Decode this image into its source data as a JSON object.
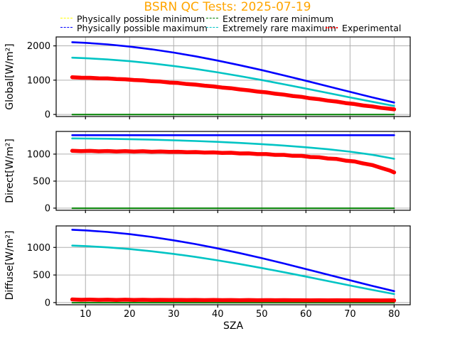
{
  "title": {
    "text": "BSRN QC Tests: 2025-07-19",
    "color": "#ffa500"
  },
  "legend": {
    "rows": [
      [
        {
          "label": "Physically possible minimum",
          "color": "#ffff00",
          "style": "dashed"
        },
        {
          "label": "Extremely rare minimum",
          "color": "#008000",
          "style": "dashed"
        }
      ],
      [
        {
          "label": "Physically possible maximum",
          "color": "#0000ff",
          "style": "dashed"
        },
        {
          "label": "Extremely rare maximum",
          "color": "#00c4c4",
          "style": "dashed"
        },
        {
          "label": "Experimental",
          "color": "#ff0000",
          "style": "dotted"
        }
      ]
    ]
  },
  "colors": {
    "grid": "#b0b0b0",
    "frame": "#000000"
  },
  "chart_data": [
    {
      "type": "line",
      "id": "global",
      "ylabel": "Global[W/m²]",
      "ylim": [
        -60,
        2260
      ],
      "yticks": [
        0,
        1000,
        2000
      ],
      "xlim": [
        3.35,
        83.65
      ],
      "xticks": [
        10,
        20,
        30,
        40,
        50,
        60,
        70,
        80
      ],
      "xlabel": "",
      "series": [
        {
          "name": "Physically possible minimum",
          "color": "#ffff00",
          "width": 1.5,
          "x": [
            7,
            80
          ],
          "y": [
            -4,
            -4
          ]
        },
        {
          "name": "Physically possible maximum",
          "color": "#0000ff",
          "width": 2.6,
          "x": [
            7,
            10,
            15,
            20,
            25,
            30,
            35,
            40,
            45,
            50,
            55,
            60,
            65,
            70,
            75,
            80
          ],
          "y": [
            2107,
            2088,
            2043,
            1979,
            1900,
            1804,
            1694,
            1571,
            1436,
            1292,
            1139,
            981,
            820,
            659,
            500,
            348
          ]
        },
        {
          "name": "Extremely rare minimum",
          "color": "#008000",
          "width": 2,
          "x": [
            7,
            80
          ],
          "y": [
            -2,
            -2
          ]
        },
        {
          "name": "Extremely rare maximum",
          "color": "#00c4c4",
          "width": 2.6,
          "x": [
            7,
            10,
            15,
            20,
            25,
            30,
            35,
            40,
            45,
            50,
            55,
            60,
            65,
            70,
            75,
            80
          ],
          "y": [
            1656,
            1641,
            1604,
            1553,
            1490,
            1413,
            1325,
            1227,
            1119,
            1003,
            881,
            755,
            626,
            497,
            370,
            248
          ]
        },
        {
          "name": "Experimental",
          "color": "#ff0000",
          "width": 5.5,
          "x": [
            7,
            9,
            11,
            13,
            15,
            17,
            19,
            21,
            23,
            25,
            27,
            29,
            31,
            33,
            35,
            37,
            39,
            41,
            43,
            45,
            47,
            49,
            51,
            53,
            55,
            57,
            59,
            61,
            63,
            65,
            67,
            69,
            71,
            73,
            75,
            77,
            79,
            80
          ],
          "y": [
            1086,
            1071,
            1069,
            1053,
            1051,
            1032,
            1025,
            1005,
            995,
            970,
            959,
            930,
            917,
            887,
            871,
            838,
            819,
            786,
            764,
            729,
            705,
            667,
            644,
            604,
            579,
            538,
            513,
            471,
            444,
            402,
            374,
            332,
            304,
            262,
            234,
            193,
            166,
            149
          ]
        }
      ]
    },
    {
      "type": "line",
      "id": "direct",
      "ylabel": "Direct[W/m²]",
      "ylim": [
        -40,
        1420
      ],
      "yticks": [
        0,
        500,
        1000
      ],
      "xlim": [
        3.35,
        83.65
      ],
      "xticks": [
        10,
        20,
        30,
        40,
        50,
        60,
        70,
        80
      ],
      "xlabel": "",
      "series": [
        {
          "name": "Physically possible minimum",
          "color": "#ffff00",
          "width": 1.5,
          "x": [
            7,
            80
          ],
          "y": [
            -4,
            -4
          ]
        },
        {
          "name": "Physically possible maximum",
          "color": "#0000ff",
          "width": 2.6,
          "x": [
            7,
            80
          ],
          "y": [
            1350,
            1350
          ]
        },
        {
          "name": "Extremely rare minimum",
          "color": "#008000",
          "width": 2,
          "x": [
            7,
            80
          ],
          "y": [
            -2,
            -2
          ]
        },
        {
          "name": "Extremely rare maximum",
          "color": "#00c4c4",
          "width": 2.6,
          "x": [
            7,
            10,
            15,
            20,
            25,
            30,
            35,
            40,
            45,
            50,
            55,
            60,
            65,
            70,
            75,
            80
          ],
          "y": [
            1291,
            1289,
            1284,
            1277,
            1268,
            1256,
            1242,
            1226,
            1207,
            1184,
            1158,
            1127,
            1090,
            1045,
            989,
            914
          ]
        },
        {
          "name": "Experimental",
          "color": "#ff0000",
          "width": 5.5,
          "x": [
            7,
            9,
            11,
            13,
            15,
            17,
            19,
            21,
            23,
            25,
            27,
            29,
            31,
            33,
            35,
            37,
            39,
            41,
            43,
            45,
            47,
            49,
            51,
            53,
            55,
            57,
            59,
            61,
            63,
            65,
            67,
            69,
            71,
            73,
            75,
            77,
            79,
            80
          ],
          "y": [
            1061,
            1054,
            1060,
            1052,
            1057,
            1049,
            1056,
            1047,
            1053,
            1044,
            1049,
            1041,
            1044,
            1034,
            1039,
            1028,
            1032,
            1021,
            1025,
            1012,
            1013,
            1000,
            1000,
            986,
            986,
            969,
            967,
            946,
            941,
            919,
            909,
            880,
            865,
            827,
            798,
            747,
            696,
            661
          ]
        }
      ]
    },
    {
      "type": "line",
      "id": "diffuse",
      "ylabel": "Diffuse[W/m²]",
      "ylim": [
        -40,
        1390
      ],
      "yticks": [
        0,
        500,
        1000
      ],
      "xlim": [
        3.35,
        83.65
      ],
      "xticks": [
        10,
        20,
        30,
        40,
        50,
        60,
        70,
        80
      ],
      "xlabel": "SZA",
      "series": [
        {
          "name": "Physically possible minimum",
          "color": "#ffff00",
          "width": 1.5,
          "x": [
            7,
            80
          ],
          "y": [
            -4,
            -4
          ]
        },
        {
          "name": "Physically possible maximum",
          "color": "#0000ff",
          "width": 2.6,
          "x": [
            7,
            10,
            15,
            20,
            25,
            30,
            35,
            40,
            45,
            50,
            55,
            60,
            65,
            70,
            75,
            80
          ],
          "y": [
            1321,
            1309,
            1280,
            1240,
            1190,
            1129,
            1060,
            981,
            896,
            805,
            708,
            608,
            506,
            404,
            303,
            207
          ]
        },
        {
          "name": "Extremely rare minimum",
          "color": "#008000",
          "width": 2,
          "x": [
            7,
            80
          ],
          "y": [
            -2,
            -2
          ]
        },
        {
          "name": "Extremely rare maximum",
          "color": "#00c4c4",
          "width": 2.6,
          "x": [
            7,
            10,
            15,
            20,
            25,
            30,
            35,
            40,
            45,
            50,
            55,
            60,
            65,
            70,
            75,
            80
          ],
          "y": [
            1033,
            1024,
            1001,
            970,
            930,
            882,
            827,
            765,
            698,
            626,
            550,
            471,
            390,
            309,
            230,
            154
          ]
        },
        {
          "name": "Experimental",
          "color": "#ff0000",
          "width": 5.5,
          "x": [
            7,
            9,
            11,
            13,
            15,
            17,
            19,
            21,
            23,
            25,
            27,
            29,
            31,
            33,
            35,
            37,
            39,
            41,
            43,
            45,
            47,
            49,
            51,
            53,
            55,
            57,
            59,
            61,
            63,
            65,
            67,
            69,
            71,
            73,
            75,
            77,
            79,
            80
          ],
          "y": [
            56,
            50,
            54,
            49,
            52,
            48,
            51,
            47,
            50,
            46,
            49,
            46,
            48,
            45,
            47,
            44,
            46,
            44,
            45,
            43,
            45,
            43,
            44,
            42,
            44,
            42,
            43,
            41,
            43,
            41,
            42,
            40,
            42,
            40,
            41,
            39,
            40,
            38
          ]
        }
      ]
    }
  ]
}
